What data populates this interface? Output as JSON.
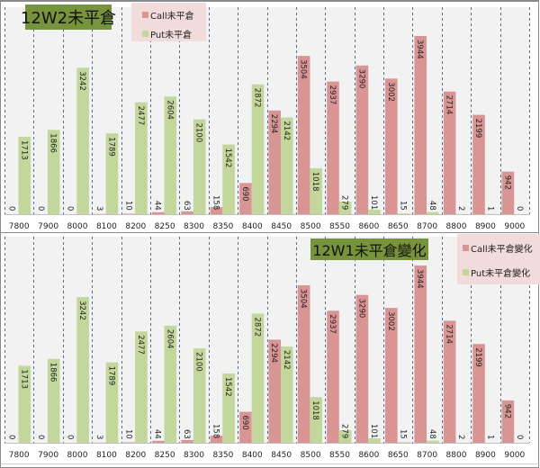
{
  "charts": [
    {
      "id": "top",
      "title": "12W2未平倉",
      "legend": [
        {
          "label": "Call未平倉",
          "color": "#d99594"
        },
        {
          "label": "Put未平倉",
          "color": "#c3d69b"
        }
      ]
    },
    {
      "id": "bottom",
      "title": "12W1未平倉變化",
      "legend": [
        {
          "label": "Call未平倉變化",
          "color": "#d99594"
        },
        {
          "label": "Put未平倉變化",
          "color": "#c3d69b"
        }
      ]
    }
  ],
  "chart_data": [
    {
      "type": "bar",
      "title": "12W2未平倉",
      "xlabel": "",
      "ylabel": "",
      "ylim": [
        0,
        3944
      ],
      "grid": "vertical-dashed",
      "legend_position": "top",
      "categories": [
        "7800",
        "7900",
        "8000",
        "8100",
        "8200",
        "8250",
        "8300",
        "8350",
        "8400",
        "8450",
        "8500",
        "8550",
        "8600",
        "8650",
        "8700",
        "8800",
        "8900",
        "9000"
      ],
      "series": [
        {
          "name": "Call未平倉",
          "color": "#d99594",
          "values": [
            0,
            0,
            0,
            3,
            10,
            44,
            63,
            158,
            690,
            2294,
            3504,
            2937,
            3290,
            3002,
            3944,
            2714,
            2199,
            942
          ]
        },
        {
          "name": "Put未平倉",
          "color": "#c3d69b",
          "values": [
            1713,
            1866,
            3242,
            1789,
            2477,
            2604,
            2100,
            1542,
            2872,
            2142,
            1018,
            279,
            101,
            15,
            48,
            2,
            1,
            0
          ]
        }
      ]
    },
    {
      "type": "bar",
      "title": "12W1未平倉變化",
      "xlabel": "",
      "ylabel": "",
      "ylim": [
        0,
        3944
      ],
      "grid": "vertical-dashed",
      "legend_position": "top-right",
      "categories": [
        "7800",
        "7900",
        "8000",
        "8100",
        "8200",
        "8250",
        "8300",
        "8350",
        "8400",
        "8450",
        "8500",
        "8550",
        "8600",
        "8650",
        "8700",
        "8800",
        "8900",
        "9000"
      ],
      "series": [
        {
          "name": "Call未平倉變化",
          "color": "#d99594",
          "values": [
            0,
            0,
            0,
            3,
            10,
            44,
            63,
            158,
            690,
            2294,
            3504,
            2937,
            3290,
            3002,
            3944,
            2714,
            2199,
            942
          ]
        },
        {
          "name": "Put未平倉變化",
          "color": "#c3d69b",
          "values": [
            1713,
            1866,
            3242,
            1789,
            2477,
            2604,
            2100,
            1542,
            2872,
            2142,
            1018,
            279,
            101,
            15,
            48,
            2,
            1,
            0
          ]
        }
      ]
    }
  ]
}
